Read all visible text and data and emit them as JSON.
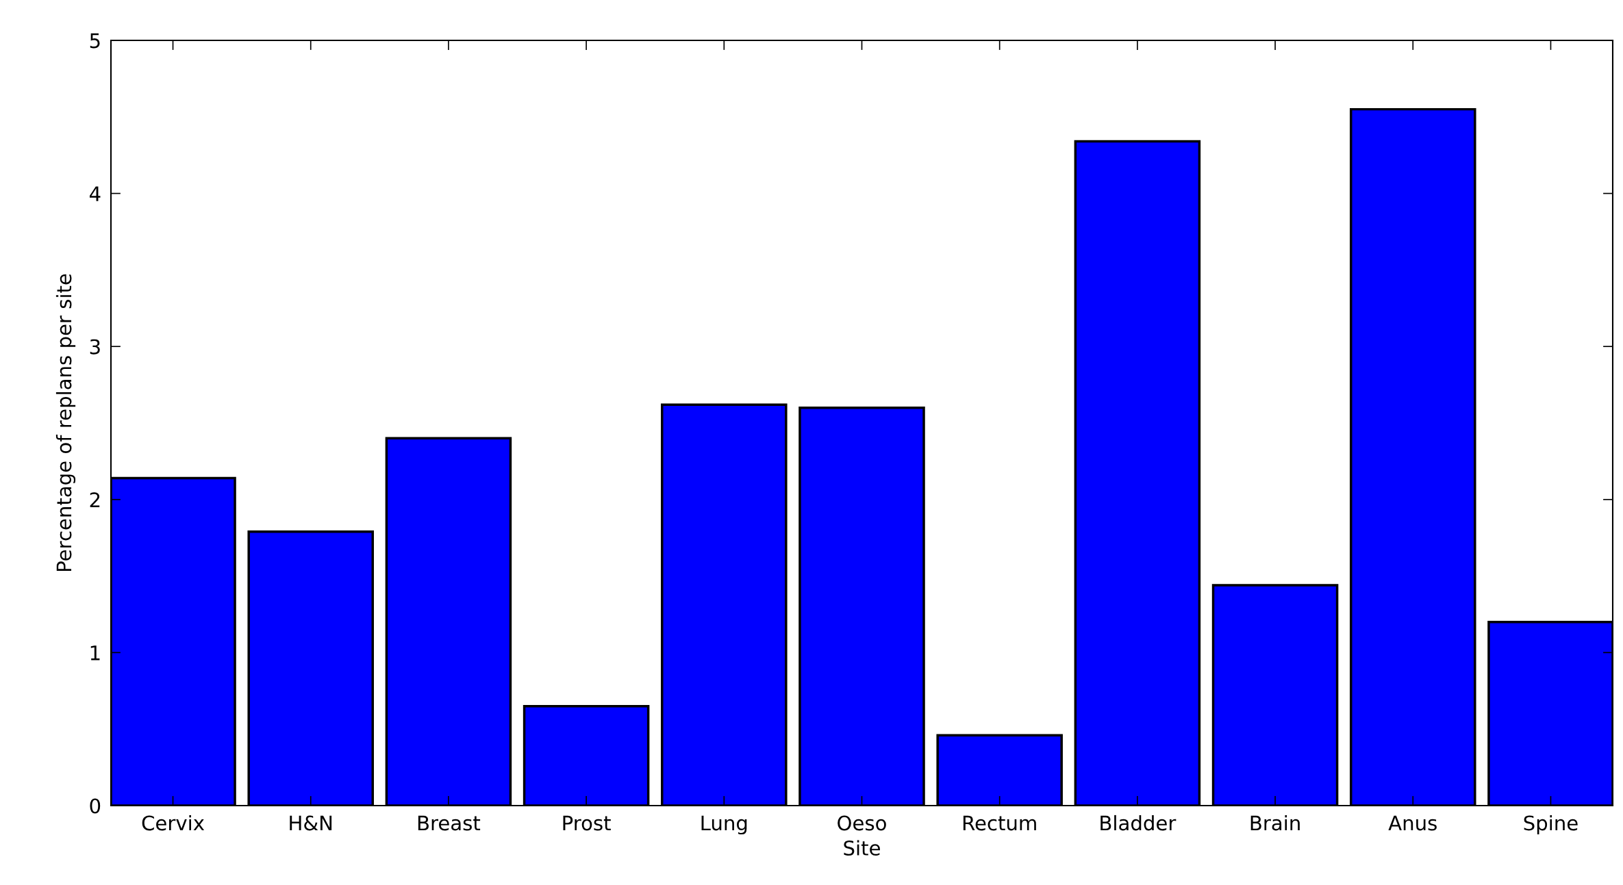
{
  "chart_data": {
    "type": "bar",
    "xlabel": "Site",
    "ylabel": "Percentage of replans per site",
    "categories": [
      "Cervix",
      "H&N",
      "Breast",
      "Prost",
      "Lung",
      "Oeso",
      "Rectum",
      "Bladder",
      "Brain",
      "Anus",
      "Spine"
    ],
    "values": [
      2.14,
      1.79,
      2.4,
      0.65,
      2.62,
      2.6,
      0.46,
      4.34,
      1.44,
      4.55,
      1.2
    ],
    "color": "#0000ff",
    "ylim": [
      0,
      5
    ],
    "yticks": [
      0,
      1,
      2,
      3,
      4,
      5
    ],
    "grid": false,
    "legend": false
  }
}
